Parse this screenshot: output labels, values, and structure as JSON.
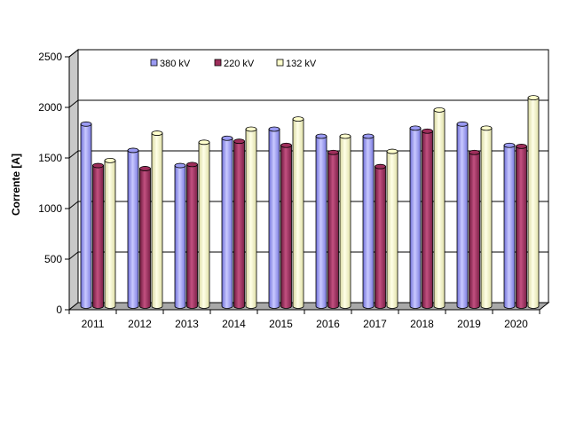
{
  "chart_data": {
    "type": "bar",
    "title": "",
    "xlabel": "",
    "ylabel": "Corrente [A]",
    "ylim": [
      0,
      2500
    ],
    "yticks": [
      0,
      500,
      1000,
      1500,
      2000,
      2500
    ],
    "ytick_labels": [
      "0",
      "500",
      "1000",
      "1500",
      "2000",
      "2500"
    ],
    "grid": true,
    "legend_position": "top",
    "categories": [
      "2011",
      "2012",
      "2013",
      "2014",
      "2015",
      "2016",
      "2017",
      "2018",
      "2019",
      "2020"
    ],
    "series": [
      {
        "name": "380 kV",
        "color": "#9b9bf3",
        "values": [
          1800,
          1540,
          1390,
          1660,
          1750,
          1680,
          1680,
          1760,
          1800,
          1590
        ]
      },
      {
        "name": "220 kV",
        "color": "#9e2e5b",
        "values": [
          1390,
          1360,
          1400,
          1630,
          1590,
          1520,
          1380,
          1730,
          1520,
          1580
        ]
      },
      {
        "name": "132 kV",
        "color": "#ffffcc",
        "values": [
          1440,
          1710,
          1620,
          1750,
          1850,
          1680,
          1530,
          1940,
          1760,
          2060
        ]
      }
    ]
  }
}
